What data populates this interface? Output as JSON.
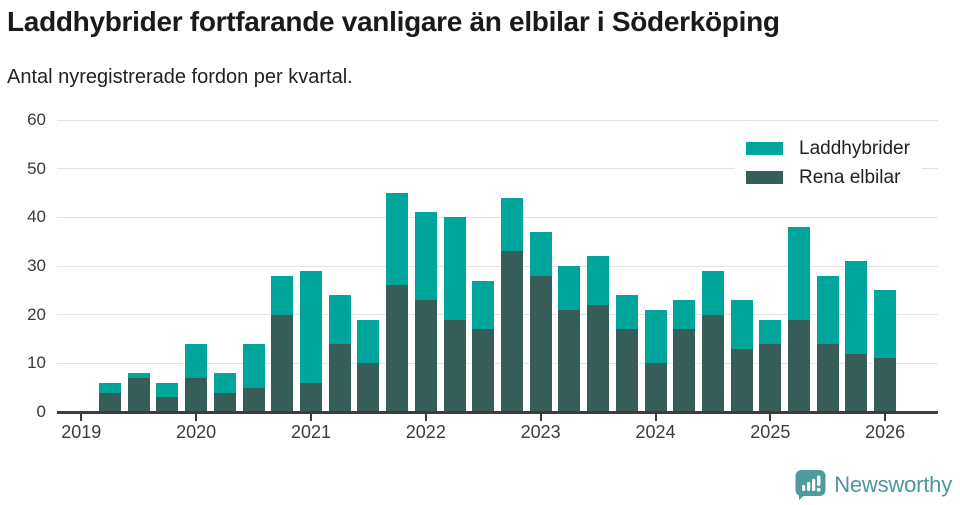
{
  "header": {
    "title": "Laddhybrider fortfarande vanligare än elbilar i Söderköping",
    "subtitle": "Antal nyregistrerade fordon per kvartal."
  },
  "chart_data": {
    "type": "bar",
    "stacked": true,
    "title": "Laddhybrider fortfarande vanligare än elbilar i Söderköping",
    "subtitle": "Antal nyregistrerade fordon per kvartal.",
    "categories": [
      "2019 Q1",
      "2019 Q2",
      "2019 Q3",
      "2019 Q4",
      "2020 Q1",
      "2020 Q2",
      "2020 Q3",
      "2020 Q4",
      "2021 Q1",
      "2021 Q2",
      "2021 Q3",
      "2021 Q4",
      "2022 Q1",
      "2022 Q2",
      "2022 Q3",
      "2022 Q4",
      "2023 Q1",
      "2023 Q2",
      "2023 Q3",
      "2023 Q4",
      "2024 Q1",
      "2024 Q2",
      "2024 Q3",
      "2024 Q4",
      "2025 Q1",
      "2025 Q2",
      "2025 Q3",
      "2025 Q4",
      "2026 Q1"
    ],
    "series": [
      {
        "name": "Laddhybrider",
        "color": "#00a59c",
        "values": [
          0,
          2,
          1,
          3,
          7,
          4,
          9,
          8,
          23,
          10,
          9,
          19,
          18,
          21,
          10,
          11,
          9,
          9,
          10,
          7,
          11,
          6,
          9,
          10,
          5,
          19,
          14,
          19,
          14
        ]
      },
      {
        "name": "Rena elbilar",
        "color": "#375d59",
        "values": [
          0,
          4,
          7,
          3,
          7,
          4,
          5,
          20,
          6,
          14,
          10,
          26,
          23,
          19,
          17,
          33,
          28,
          21,
          22,
          17,
          10,
          17,
          20,
          13,
          14,
          19,
          14,
          12,
          11
        ]
      }
    ],
    "stack_totals": [
      0,
      6,
      8,
      6,
      14,
      8,
      14,
      28,
      29,
      24,
      19,
      45,
      41,
      40,
      27,
      44,
      37,
      30,
      32,
      24,
      21,
      23,
      29,
      23,
      19,
      38,
      28,
      31,
      25
    ],
    "ylim": [
      0,
      60
    ],
    "y_ticks": [
      0,
      10,
      20,
      30,
      40,
      50,
      60
    ],
    "x_tick_labels": [
      "2019",
      "2020",
      "2021",
      "2022",
      "2023",
      "2024",
      "2025",
      "2026"
    ],
    "x_tick_every": 4,
    "grid": "horizontal",
    "legend_position": "top-right",
    "grid_color": "#e2e2e2",
    "axis_color": "#3d3d3d"
  },
  "footer": {
    "brand": "Newsworthy",
    "logo_icon": "bar-chart-speech-bubble-icon",
    "brand_color": "#4a97a1",
    "logo_color": "#4f9b9c"
  }
}
